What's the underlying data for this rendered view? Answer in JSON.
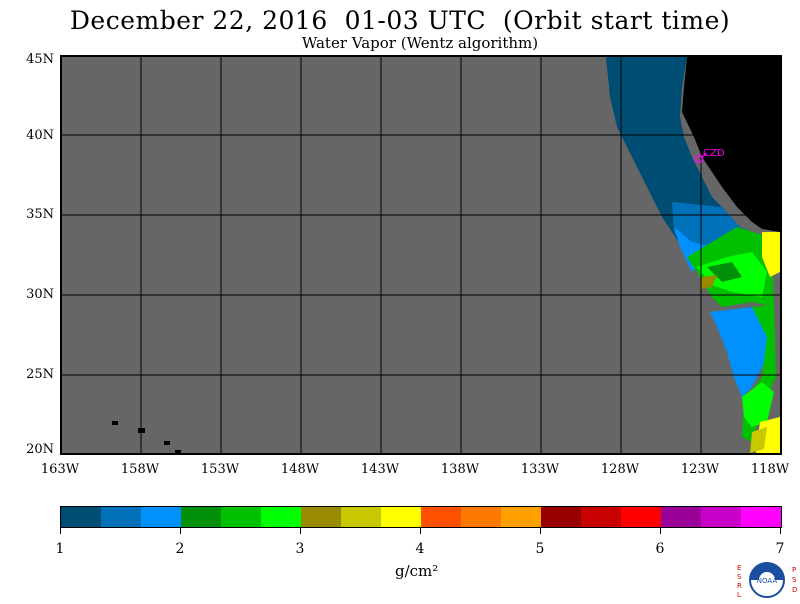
{
  "title": "December 22, 2016  01-03 UTC  (Orbit start time)",
  "subtitle": "Water Vapor (Wentz algorithm)",
  "lat_labels": [
    "45N",
    "40N",
    "35N",
    "30N",
    "25N",
    "20N"
  ],
  "lon_labels": [
    "163W",
    "158W",
    "153W",
    "148W",
    "143W",
    "138W",
    "133W",
    "128W",
    "123W",
    "118W"
  ],
  "station_label": "CZD",
  "colorbar": {
    "colors": [
      "#004d73",
      "#0070b8",
      "#0091ff",
      "#00900a",
      "#00c000",
      "#00ff00",
      "#9a8a00",
      "#c8c800",
      "#ffff00",
      "#ff5000",
      "#ff7800",
      "#ffa000",
      "#960000",
      "#c80000",
      "#ff0000",
      "#980098",
      "#c800c8",
      "#ff00ff"
    ],
    "tick_labels": [
      "1",
      "2",
      "3",
      "4",
      "5",
      "6",
      "7"
    ],
    "unit": "g/cm²"
  },
  "logo": {
    "letters_left": "ESRL",
    "letters_right": "PSD",
    "center": "NOAA"
  }
}
